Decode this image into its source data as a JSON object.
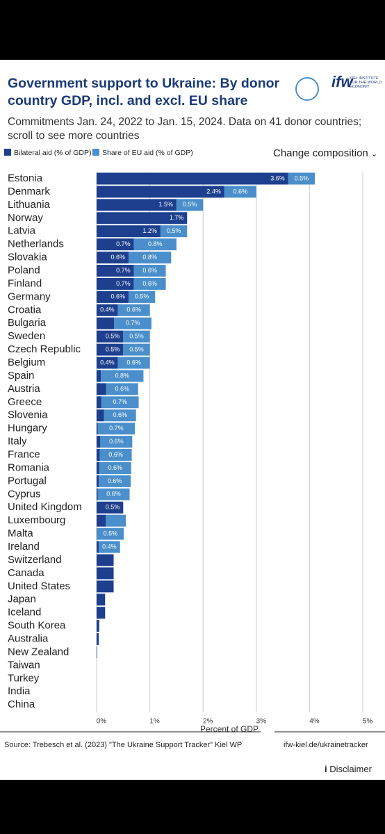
{
  "header": {
    "title": "Government support to Ukraine: By donor country GDP, incl. and excl. EU share",
    "logo": "ifw",
    "logo_caption": "KIEL INSTITUTE FOR THE WORLD ECONOMY",
    "subtitle": "Commitments Jan. 24, 2022 to Jan. 15, 2024. Data on 41 donor countries; scroll to see more countries",
    "control": "Change composition"
  },
  "chart_data": {
    "type": "stacked-bar-horizontal",
    "categories": [
      "Estonia",
      "Denmark",
      "Lithuania",
      "Norway",
      "Latvia",
      "Netherlands",
      "Slovakia",
      "Poland",
      "Finland",
      "Germany",
      "Croatia",
      "Bulgaria",
      "Sweden",
      "Czech Republic",
      "Belgium",
      "Spain",
      "Austria",
      "Greece",
      "Slovenia",
      "Hungary",
      "Italy",
      "France",
      "Romania",
      "Portugal",
      "Cyprus",
      "United Kingdom",
      "Luxembourg",
      "Malta",
      "Ireland",
      "Switzerland",
      "Canada",
      "United States",
      "Japan",
      "Iceland",
      "South Korea",
      "Australia",
      "New Zealand",
      "Taiwan",
      "Turkey",
      "India",
      "China"
    ],
    "series": [
      {
        "name": "Bilateral aid (% of GDP)",
        "color": "#1d3f8e",
        "values": [
          3.6,
          2.4,
          1.5,
          1.7,
          1.2,
          0.7,
          0.6,
          0.7,
          0.7,
          0.6,
          0.4,
          0.33,
          0.5,
          0.5,
          0.4,
          0.08,
          0.18,
          0.09,
          0.14,
          0.02,
          0.07,
          0.06,
          0.05,
          0.04,
          0.02,
          0.5,
          0.17,
          0.01,
          0.04,
          0.32,
          0.32,
          0.32,
          0.16,
          0.16,
          0.05,
          0.04,
          0.01,
          0,
          0,
          0,
          0
        ],
        "value_labels": [
          "3.6%",
          "2.4%",
          "1.5%",
          "1.7%",
          "1.2%",
          "0.7%",
          "0.6%",
          "0.7%",
          "0.7%",
          "0.6%",
          "0.4%",
          null,
          "0.5%",
          "0.5%",
          "0.4%",
          null,
          null,
          null,
          null,
          null,
          null,
          null,
          null,
          null,
          null,
          "0.5%",
          null,
          null,
          null,
          null,
          null,
          null,
          null,
          null,
          null,
          null,
          null,
          null,
          null,
          null,
          null
        ]
      },
      {
        "name": "Share of EU aid (% of GDP)",
        "color": "#4a8fcb",
        "values": [
          0.5,
          0.6,
          0.5,
          null,
          0.5,
          0.8,
          0.8,
          0.6,
          0.6,
          0.5,
          0.6,
          0.7,
          0.5,
          0.5,
          0.6,
          0.8,
          0.6,
          0.7,
          0.6,
          0.7,
          0.6,
          0.6,
          0.6,
          0.6,
          0.6,
          null,
          0.38,
          0.5,
          0.4,
          null,
          null,
          null,
          null,
          null,
          null,
          null,
          null,
          null,
          null,
          null,
          null
        ],
        "value_labels": [
          "0.5%",
          "0.6%",
          "0.5%",
          null,
          "0.5%",
          "0.8%",
          "0.8%",
          "0.6%",
          "0.6%",
          "0.5%",
          "0.6%",
          "0.7%",
          "0.5%",
          "0.5%",
          "0.6%",
          "0.8%",
          "0.6%",
          "0.7%",
          "0.6%",
          "0.7%",
          "0.6%",
          "0.6%",
          "0.6%",
          "0.6%",
          "0.6%",
          null,
          null,
          "0.5%",
          "0.4%",
          null,
          null,
          null,
          null,
          null,
          null,
          null,
          null,
          null,
          null,
          null,
          null
        ]
      }
    ],
    "xlim": [
      0,
      5.3
    ],
    "xticks": [
      {
        "value": 0,
        "label": "0%"
      },
      {
        "value": 1,
        "label": "1%"
      },
      {
        "value": 2,
        "label": "2%"
      },
      {
        "value": 3,
        "label": "3%"
      },
      {
        "value": 4,
        "label": "4%"
      },
      {
        "value": 5,
        "label": "5%"
      }
    ],
    "x_label": "Percent of GDP",
    "grid": true
  },
  "footer": {
    "source": "Source: Trebesch et al. (2023) \"The Ukraine Support Tracker\" Kiel WP",
    "link": "ifw-kiel.de/ukrainetracker",
    "disclaimer": "Disclaimer"
  }
}
